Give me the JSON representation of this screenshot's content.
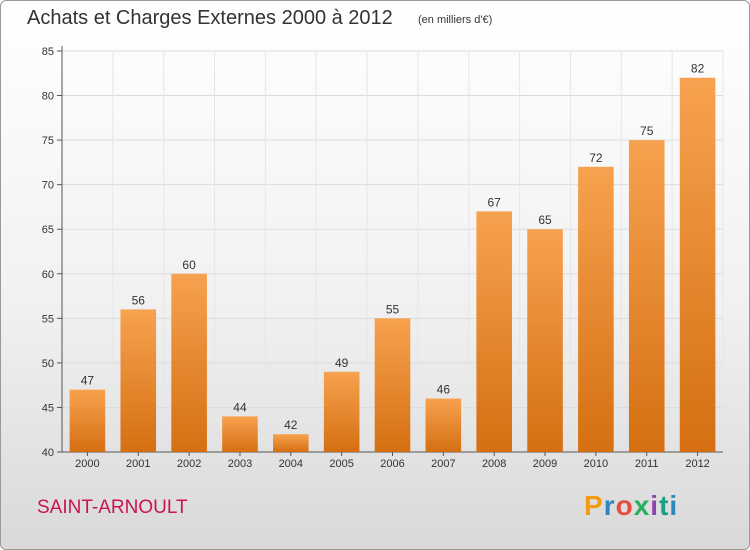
{
  "header": {
    "title": "Achats et Charges Externes 2000 à 2012",
    "subtitle": "(en milliers d'€)"
  },
  "footer": {
    "commune": "SAINT-ARNOULT",
    "logo_text": "Proxiti",
    "logo_colors": [
      "#f39c12",
      "#2e86c1",
      "#e74c3c",
      "#27ae60",
      "#8e44ad",
      "#16a085",
      "#2e86c1"
    ]
  },
  "chart_data": {
    "type": "bar",
    "categories": [
      "2000",
      "2001",
      "2002",
      "2003",
      "2004",
      "2005",
      "2006",
      "2007",
      "2008",
      "2009",
      "2010",
      "2011",
      "2012"
    ],
    "values": [
      47,
      56,
      60,
      44,
      42,
      49,
      55,
      46,
      67,
      65,
      72,
      75,
      82
    ],
    "data_labels": [
      "47",
      "56",
      "60",
      "44",
      "42",
      "49",
      "55",
      "46",
      "67",
      "65",
      "72",
      "75",
      "82"
    ],
    "ylim": [
      40,
      85
    ],
    "yticks": [
      40,
      45,
      50,
      55,
      60,
      65,
      70,
      75,
      80,
      85
    ],
    "grid": true,
    "bar_color_top": "#f7a24f",
    "bar_color_bottom": "#d56f12"
  }
}
